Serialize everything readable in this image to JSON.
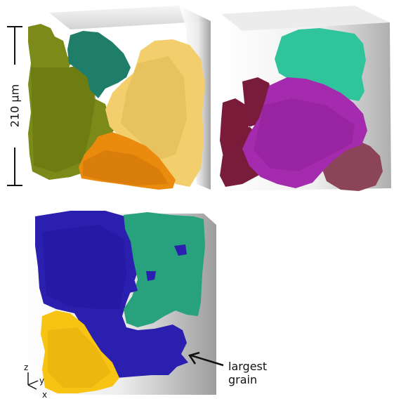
{
  "scale_bar": {
    "label": "210 µm"
  },
  "annotation": {
    "line1": "largest",
    "line2": "grain"
  },
  "axes": {
    "z": "z",
    "y": "y",
    "x": "x"
  },
  "colors": {
    "olive": "#7d8c17",
    "olive_dark": "#5f6e0f",
    "teal_dark": "#1e7f6b",
    "light_yellow": "#f1cd69",
    "orange": "#e88a0c",
    "mint": "#2fc59d",
    "magenta": "#a42aae",
    "maroon": "#7a1b3a",
    "mauve": "#8a4456",
    "navy": "#2b1fae",
    "green_teal": "#27a27b",
    "gold": "#f7c313"
  }
}
